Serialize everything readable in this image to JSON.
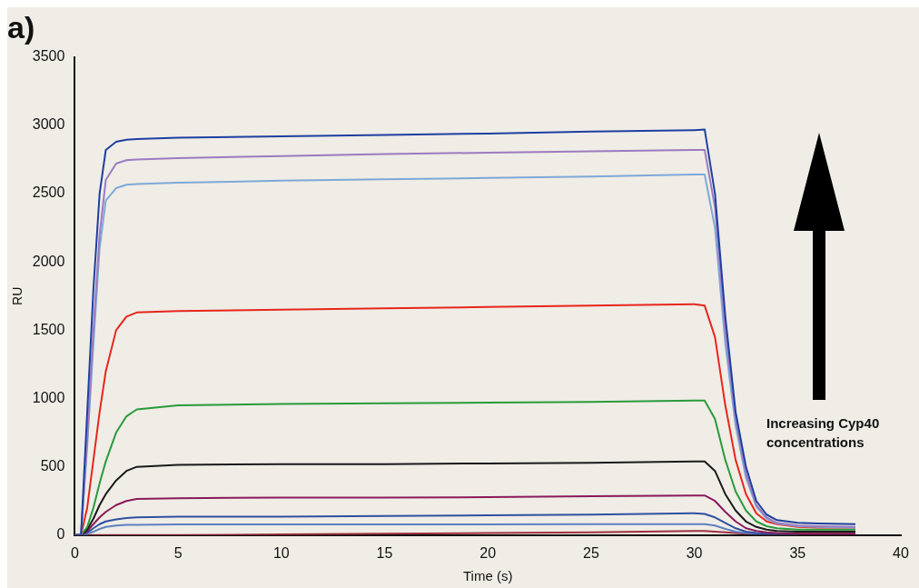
{
  "chart_data": {
    "type": "line",
    "title": "a)",
    "xlabel": "Time (s)",
    "ylabel": "RU",
    "x": [
      0,
      0.3,
      0.6,
      0.9,
      1.2,
      1.5,
      2,
      2.5,
      3,
      5,
      10,
      15,
      20,
      25,
      30,
      30.5,
      31,
      31.5,
      32,
      32.5,
      33,
      33.5,
      34,
      35,
      36,
      37.8
    ],
    "series": [
      {
        "color": "#1f3fa0",
        "values": [
          0,
          0,
          900,
          1800,
          2500,
          2820,
          2880,
          2895,
          2900,
          2910,
          2920,
          2930,
          2940,
          2955,
          2965,
          2970,
          2500,
          1600,
          900,
          500,
          250,
          150,
          110,
          90,
          85,
          80
        ]
      },
      {
        "color": "#9b7bc0",
        "values": [
          0,
          0,
          700,
          1500,
          2200,
          2600,
          2720,
          2745,
          2750,
          2760,
          2775,
          2790,
          2800,
          2810,
          2820,
          2820,
          2400,
          1500,
          850,
          450,
          220,
          130,
          90,
          70,
          65,
          60
        ]
      },
      {
        "color": "#7fa8d8",
        "values": [
          0,
          0,
          650,
          1400,
          2100,
          2450,
          2540,
          2565,
          2570,
          2580,
          2595,
          2605,
          2615,
          2625,
          2640,
          2640,
          2250,
          1400,
          800,
          420,
          210,
          120,
          85,
          65,
          60,
          55
        ]
      },
      {
        "color": "#e8261c",
        "values": [
          0,
          0,
          200,
          550,
          900,
          1200,
          1500,
          1600,
          1630,
          1640,
          1650,
          1660,
          1670,
          1680,
          1690,
          1680,
          1450,
          950,
          550,
          300,
          160,
          100,
          80,
          60,
          55,
          55
        ]
      },
      {
        "color": "#2a9a3a",
        "values": [
          0,
          0,
          60,
          200,
          380,
          540,
          750,
          870,
          920,
          950,
          960,
          965,
          970,
          975,
          985,
          985,
          850,
          550,
          320,
          180,
          100,
          65,
          50,
          40,
          40,
          40
        ]
      },
      {
        "color": "#1a1a1a",
        "values": [
          0,
          0,
          40,
          120,
          220,
          300,
          400,
          470,
          500,
          515,
          520,
          520,
          525,
          530,
          540,
          540,
          470,
          300,
          180,
          100,
          60,
          40,
          30,
          25,
          25,
          25
        ]
      },
      {
        "color": "#8a1a5a",
        "values": [
          0,
          0,
          30,
          80,
          130,
          170,
          220,
          250,
          265,
          270,
          275,
          275,
          278,
          285,
          290,
          290,
          250,
          170,
          100,
          50,
          30,
          20,
          15,
          10,
          10,
          10
        ]
      },
      {
        "color": "#3050a0",
        "values": [
          0,
          0,
          20,
          50,
          80,
          100,
          115,
          125,
          130,
          135,
          135,
          140,
          145,
          150,
          160,
          155,
          130,
          90,
          50,
          25,
          15,
          10,
          10,
          10,
          null,
          null
        ]
      },
      {
        "color": "#6080c0",
        "values": [
          0,
          0,
          10,
          25,
          45,
          60,
          70,
          75,
          75,
          78,
          78,
          78,
          78,
          80,
          80,
          80,
          70,
          45,
          25,
          15,
          10,
          10,
          10,
          10,
          null,
          null
        ]
      },
      {
        "color": "#a03040",
        "values": [
          0,
          0,
          0,
          0,
          0,
          0,
          0,
          0,
          0,
          0,
          5,
          10,
          15,
          20,
          30,
          30,
          25,
          20,
          15,
          10,
          10,
          10,
          10,
          10,
          10,
          10
        ]
      }
    ],
    "xlim": [
      0,
      40
    ],
    "xticks": [
      0,
      5,
      10,
      15,
      20,
      25,
      30,
      35,
      40
    ],
    "ylim": [
      0,
      3500
    ],
    "yticks": [
      0,
      500,
      1000,
      1500,
      2000,
      2500,
      3000,
      3500
    ],
    "grid": false,
    "legend": false,
    "marker": "none",
    "line_style": "solid",
    "annotations": [
      "Increasing Cyp40 concentrations"
    ]
  }
}
